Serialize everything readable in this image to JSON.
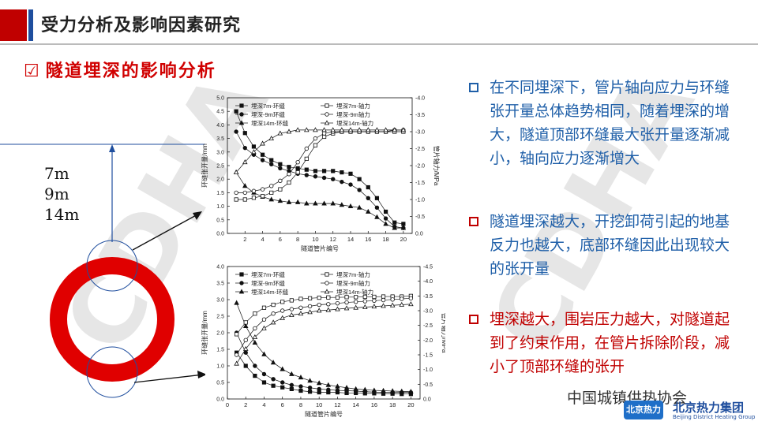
{
  "header": {
    "title": "受力分析及影响因素研究"
  },
  "section": {
    "checkbox": "☑",
    "title": "隧道埋深的影响分析"
  },
  "watermark": "CDHA",
  "depth_labels": [
    "7m",
    "9m",
    "14m"
  ],
  "bullets": [
    {
      "text": "在不同埋深下，管片轴向应力与环缝张开量总体趋势相同，随着埋深的增大，隧道顶部环缝最大张开量逐渐减小，轴向应力逐渐增大",
      "color": "#1f5fa8",
      "box_color": "#1f5fa8"
    },
    {
      "text": "隧道埋深越大，开挖卸荷引起的地基反力也越大，底部环缝因此出现较大的张开量",
      "color": "#1f5fa8",
      "box_color": "#c00000"
    },
    {
      "text": "埋深越大，围岩压力越大，对隧道起到了约束作用，在管片拆除阶段，减小了顶部环缝的张开",
      "color": "#c00000",
      "box_color": "#c00000"
    }
  ],
  "footer": {
    "association": "中国城镇供热协会",
    "brand": "北京热力集团",
    "brand_en": "Beijing District Heating Group"
  },
  "chart_data": [
    {
      "type": "line",
      "xlabel": "隧道管片编号",
      "ylabel": "环缝张开量/mm",
      "y2label": "管片轴力/MPa",
      "x_ticks": [
        2,
        4,
        6,
        8,
        10,
        12,
        14,
        16,
        18,
        20
      ],
      "ylim": [
        0,
        5.0
      ],
      "y_ticks": [
        "0.0",
        "0.5",
        "1.0",
        "1.5",
        "2.0",
        "2.5",
        "3.0",
        "3.5",
        "4.0",
        "4.5",
        "5.0"
      ],
      "y2lim": [
        0,
        -4.0
      ],
      "y2_ticks": [
        "0.0",
        "-0.5",
        "-1.0",
        "-1.5",
        "-2.0",
        "-2.5",
        "-3.0",
        "-3.5",
        "-4.0"
      ],
      "legend": [
        "埋深7m-环缝",
        "埋深-9m环缝",
        "埋深14m-环缝",
        "埋深7m-轴力",
        "埋深-9m轴力",
        "埋深14m-轴力"
      ],
      "x": [
        1,
        2,
        3,
        4,
        5,
        6,
        7,
        8,
        9,
        10,
        11,
        12,
        13,
        14,
        15,
        16,
        17,
        18,
        19,
        20
      ],
      "series": [
        {
          "name": "埋深7m-环缝",
          "axis": "left",
          "marker": "square",
          "values": [
            4.5,
            3.7,
            3.2,
            2.9,
            2.7,
            2.55,
            2.45,
            2.4,
            2.35,
            2.3,
            2.3,
            2.3,
            2.25,
            2.2,
            2.0,
            1.7,
            1.3,
            0.8,
            0.4,
            0.35
          ]
        },
        {
          "name": "埋深-9m环缝",
          "axis": "left",
          "marker": "circle",
          "values": [
            3.75,
            3.15,
            2.9,
            2.7,
            2.55,
            2.4,
            2.3,
            2.2,
            2.15,
            2.1,
            2.05,
            2.0,
            1.9,
            1.8,
            1.6,
            1.3,
            0.95,
            0.55,
            0.25,
            0.2
          ]
        },
        {
          "name": "埋深14m-环缝",
          "axis": "left",
          "marker": "triangle",
          "values": [
            2.25,
            1.75,
            1.5,
            1.35,
            1.25,
            1.2,
            1.15,
            1.15,
            1.1,
            1.1,
            1.1,
            1.1,
            1.05,
            1.0,
            0.95,
            0.8,
            0.6,
            0.35,
            0.2,
            0.2
          ]
        },
        {
          "name": "埋深7m-轴力",
          "axis": "right",
          "marker": "open-square",
          "values": [
            -1.0,
            -1.0,
            -1.05,
            -1.1,
            -1.2,
            -1.3,
            -1.5,
            -1.8,
            -2.2,
            -2.6,
            -2.85,
            -2.95,
            -3.0,
            -3.0,
            -3.0,
            -3.0,
            -3.0,
            -3.0,
            -3.0,
            -3.0
          ]
        },
        {
          "name": "埋深-9m轴力",
          "axis": "right",
          "marker": "open-circle",
          "values": [
            -1.2,
            -1.2,
            -1.25,
            -1.3,
            -1.4,
            -1.55,
            -1.75,
            -2.1,
            -2.5,
            -2.8,
            -2.95,
            -3.0,
            -3.0,
            -3.0,
            -3.0,
            -3.0,
            -3.0,
            -3.0,
            -3.05,
            -3.05
          ]
        },
        {
          "name": "埋深14m-轴力",
          "axis": "right",
          "marker": "open-triangle",
          "values": [
            -1.8,
            -2.1,
            -2.4,
            -2.65,
            -2.8,
            -2.95,
            -3.0,
            -3.05,
            -3.05,
            -3.05,
            -3.05,
            -3.05,
            -3.05,
            -3.05,
            -3.05,
            -3.05,
            -3.05,
            -3.05,
            -3.05,
            -3.05
          ]
        }
      ]
    },
    {
      "type": "line",
      "xlabel": "隧道管片编号",
      "ylabel": "环缝张开量/mm",
      "y2label": "管片轴力/MPa",
      "x_ticks": [
        0,
        2,
        4,
        6,
        8,
        10,
        12,
        14,
        16,
        18,
        20
      ],
      "ylim": [
        0,
        4.0
      ],
      "y_ticks": [
        "0.0",
        "0.5",
        "1.0",
        "1.5",
        "2.0",
        "2.5",
        "3.0",
        "3.5",
        "4.0"
      ],
      "y2lim": [
        0,
        -4.5
      ],
      "y2_ticks": [
        "0.0",
        "-0.5",
        "-1.0",
        "-1.5",
        "-2.0",
        "-2.5",
        "-3.0",
        "-3.5",
        "-4.0",
        "-4.5"
      ],
      "legend": [
        "埋深7m-环缝",
        "埋深-9m环缝",
        "埋深14m-环缝",
        "埋深7m-轴力",
        "埋深-9m轴力",
        "埋深14m-轴力"
      ],
      "x": [
        1,
        2,
        3,
        4,
        5,
        6,
        7,
        8,
        9,
        10,
        11,
        12,
        13,
        14,
        15,
        16,
        17,
        18,
        19,
        20
      ],
      "series": [
        {
          "name": "埋深7m-环缝",
          "axis": "left",
          "marker": "square",
          "values": [
            1.4,
            1.0,
            0.7,
            0.5,
            0.4,
            0.35,
            0.3,
            0.25,
            0.22,
            0.2,
            0.2,
            0.2,
            0.18,
            0.18,
            0.17,
            0.17,
            0.16,
            0.16,
            0.15,
            0.15
          ]
        },
        {
          "name": "埋深-9m环缝",
          "axis": "left",
          "marker": "circle",
          "values": [
            2.0,
            1.4,
            1.0,
            0.75,
            0.6,
            0.5,
            0.42,
            0.38,
            0.34,
            0.3,
            0.28,
            0.26,
            0.25,
            0.24,
            0.22,
            0.21,
            0.2,
            0.2,
            0.2,
            0.2
          ]
        },
        {
          "name": "埋深14m-环缝",
          "axis": "left",
          "marker": "triangle",
          "values": [
            2.9,
            2.2,
            1.7,
            1.35,
            1.1,
            0.9,
            0.75,
            0.65,
            0.55,
            0.48,
            0.42,
            0.38,
            0.34,
            0.3,
            0.28,
            0.26,
            0.25,
            0.24,
            0.23,
            0.22
          ]
        },
        {
          "name": "埋深7m-轴力",
          "axis": "right",
          "marker": "open-square",
          "values": [
            -2.2,
            -2.6,
            -2.9,
            -3.1,
            -3.2,
            -3.3,
            -3.35,
            -3.4,
            -3.42,
            -3.44,
            -3.45,
            -3.45,
            -3.46,
            -3.46,
            -3.47,
            -3.47,
            -3.48,
            -3.48,
            -3.48,
            -3.5
          ]
        },
        {
          "name": "埋深-9m轴力",
          "axis": "right",
          "marker": "open-circle",
          "values": [
            -1.5,
            -2.0,
            -2.4,
            -2.7,
            -2.9,
            -3.0,
            -3.05,
            -3.1,
            -3.15,
            -3.2,
            -3.22,
            -3.25,
            -3.28,
            -3.3,
            -3.32,
            -3.34,
            -3.36,
            -3.38,
            -3.4,
            -3.42
          ]
        },
        {
          "name": "埋深14m-轴力",
          "axis": "right",
          "marker": "open-triangle",
          "values": [
            -1.2,
            -1.7,
            -2.1,
            -2.4,
            -2.6,
            -2.75,
            -2.85,
            -2.9,
            -2.95,
            -3.0,
            -3.02,
            -3.05,
            -3.08,
            -3.1,
            -3.12,
            -3.14,
            -3.16,
            -3.18,
            -3.2,
            -3.22
          ]
        }
      ]
    }
  ]
}
